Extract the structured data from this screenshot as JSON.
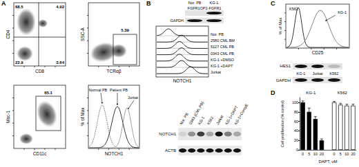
{
  "panels": {
    "A": {
      "label": "A",
      "plots": [
        {
          "type": "scatter",
          "y_label": "CD4",
          "x_label": "CD8",
          "quadrants": {
            "upper_left": 68.5,
            "upper_right": 4.92,
            "lower_left": 22.9,
            "lower_right": 3.64
          }
        },
        {
          "type": "scatter",
          "y_label": "SSC-A",
          "x_label": "TCRαβ",
          "gate": 5.39
        },
        {
          "type": "scatter",
          "y_label": "Mac-1",
          "x_label": "CD11c",
          "gate": 65.1
        },
        {
          "type": "histogram",
          "y_label": "% of Max",
          "x_label": "NOTCH1",
          "curves": [
            "Normal PB",
            "Patient PB",
            "Jurkat"
          ]
        }
      ]
    },
    "B": {
      "label": "B",
      "gel": {
        "lanes": [
          "Nor. PB",
          "KG-1"
        ],
        "rows": [
          {
            "name": "FGFR1OP2-FGFR1",
            "bands": [
              0,
              1
            ]
          },
          {
            "name": "GAPDH",
            "bands": [
              1,
              1
            ]
          }
        ]
      },
      "histograms": {
        "x_label": "NOTCH1",
        "traces": [
          "Nor. PB",
          "2580 CML BM",
          "5127 CML PB",
          "0343 CML PB",
          "KG-1 +DMSO",
          "KG-1 +DAPT",
          "Jurkat"
        ]
      },
      "blot": {
        "lanes": [
          "Nor. PB",
          "0343 (CML PB)",
          "KG-1",
          "K562",
          "Jurkat",
          "KG-1+DAPT",
          "KG-1+CompE"
        ],
        "rows": [
          {
            "name": "NOTCH1",
            "bands": [
              0.1,
              0.4,
              0.8,
              0.3,
              1,
              0.5,
              0.3
            ]
          },
          {
            "name": "ACTB",
            "bands": [
              1,
              1,
              1,
              1,
              1,
              1,
              1
            ]
          }
        ]
      }
    },
    "C": {
      "label": "C",
      "histogram": {
        "y_label": "% of Max",
        "x_label": "CD25",
        "curves": [
          "K562",
          "KG-1"
        ]
      },
      "gel": {
        "lanes": [
          "KG-1",
          "Jurkat",
          "K562"
        ],
        "rows": [
          {
            "name": "HES1",
            "bands": [
              1,
              1,
              0.2
            ]
          },
          {
            "name": "GAPDH",
            "bands": [
              1,
              1,
              1
            ]
          }
        ]
      }
    },
    "D": {
      "label": "D"
    }
  },
  "chart_data": {
    "type": "bar",
    "xlabel": "DAPT, uM",
    "ylabel": "Cell proliferation (% control)",
    "categories": [
      "0",
      "5",
      "10",
      "20",
      null,
      "0",
      "5",
      "10",
      "20"
    ],
    "series": [
      {
        "name": "KG-1",
        "color": "#000000",
        "values": [
          100,
          80,
          65,
          20,
          null,
          null,
          null,
          null,
          null
        ],
        "errors": [
          3,
          8,
          5,
          3,
          null,
          null,
          null,
          null,
          null
        ]
      },
      {
        "name": "K562",
        "color": "#ffffff",
        "values": [
          null,
          null,
          null,
          null,
          null,
          100,
          95,
          93,
          93
        ],
        "errors": [
          null,
          null,
          null,
          null,
          null,
          2,
          3,
          3,
          3
        ]
      }
    ],
    "ylim": [
      0,
      110
    ],
    "yticks": [
      0,
      20,
      40,
      60,
      80,
      100
    ],
    "grid": false
  }
}
